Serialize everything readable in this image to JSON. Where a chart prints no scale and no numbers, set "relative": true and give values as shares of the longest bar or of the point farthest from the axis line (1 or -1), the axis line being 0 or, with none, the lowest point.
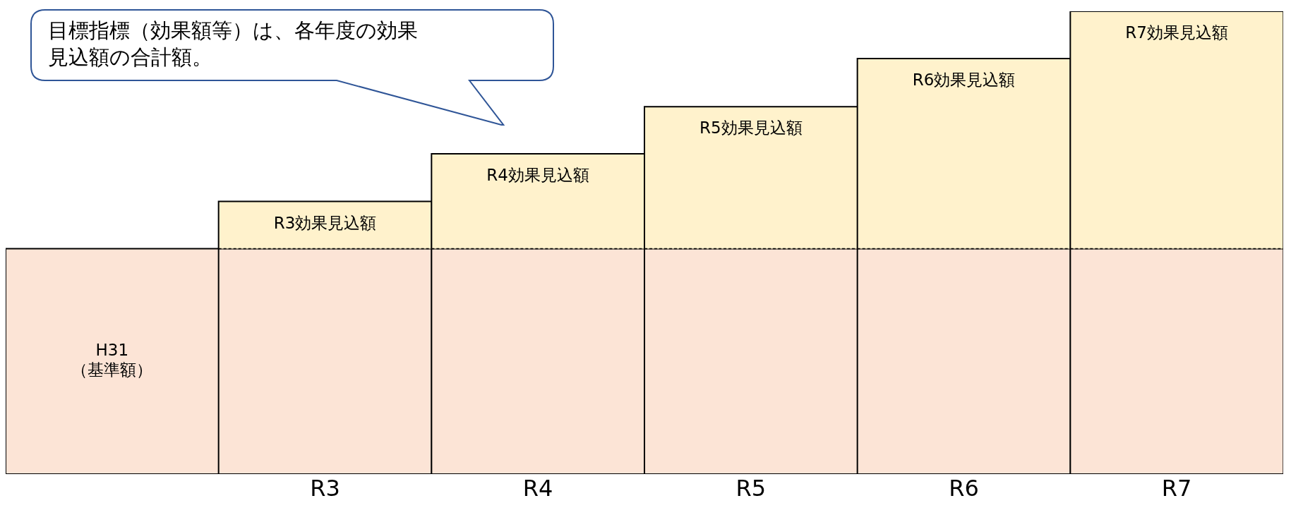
{
  "chart_data": {
    "type": "bar",
    "stacked": true,
    "relative": true,
    "categories": [
      null,
      "R3",
      "R4",
      "R5",
      "R6",
      "R7"
    ],
    "series": [
      {
        "color": "#fce4d6",
        "values": [
          0.487,
          0.487,
          0.487,
          0.487,
          0.487,
          0.487
        ]
      },
      {
        "color": "#fff2cc",
        "values": [
          0,
          0.102,
          0.205,
          0.307,
          0.411,
          0.513
        ]
      }
    ],
    "annotations": [
      "目標指標（効果額等）は、各年度の効果見込額の合計額。",
      "H31\n（基準額）",
      "R3効果見込額",
      "R4効果見込額",
      "R5効果見込額",
      "R6効果見込額",
      "R7効果見込額"
    ]
  }
}
